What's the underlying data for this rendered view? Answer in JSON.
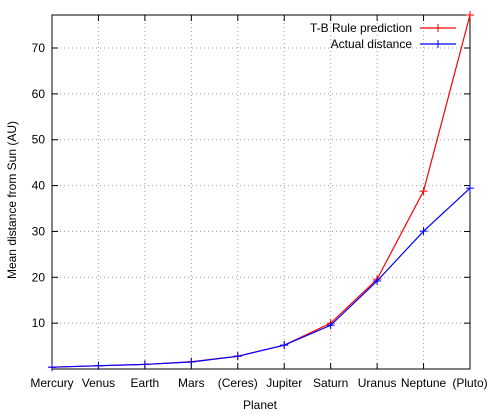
{
  "chart_data": {
    "type": "line",
    "categories": [
      "Mercury",
      "Venus",
      "Earth",
      "Mars",
      "(Ceres)",
      "Jupiter",
      "Saturn",
      "Uranus",
      "Neptune",
      "(Pluto)"
    ],
    "series": [
      {
        "name": "T-B Rule prediction",
        "color": "#ff0000",
        "marker": "plus",
        "values": [
          0.4,
          0.7,
          1.0,
          1.6,
          2.8,
          5.2,
          10.0,
          19.6,
          38.8,
          77.2
        ]
      },
      {
        "name": "Actual distance",
        "color": "#0000ff",
        "marker": "plus",
        "values": [
          0.39,
          0.72,
          1.0,
          1.52,
          2.77,
          5.2,
          9.54,
          19.2,
          30.06,
          39.44
        ]
      }
    ],
    "title": "",
    "xlabel": "Planet",
    "ylabel": "Mean distance from Sun (AU)",
    "ylim": [
      0,
      77.2
    ],
    "yticks": [
      10,
      20,
      30,
      40,
      50,
      60,
      70
    ],
    "grid": true,
    "legend_position": "top-right"
  }
}
